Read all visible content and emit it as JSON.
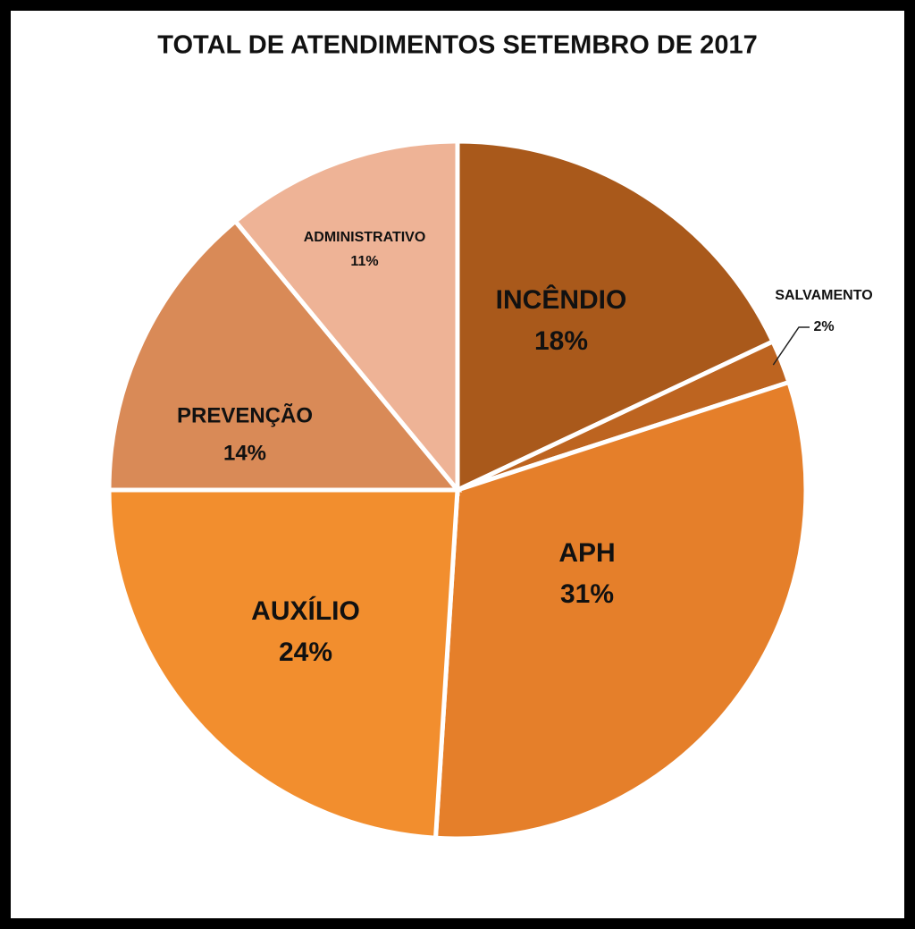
{
  "chart_data": {
    "type": "pie",
    "title": "TOTAL DE ATENDIMENTOS SETEMBRO DE 2017",
    "categories": [
      "INCÊNDIO",
      "SALVAMENTO",
      "APH",
      "AUXÍLIO",
      "PREVENÇÃO",
      "ADMINISTRATIVO"
    ],
    "values": [
      18,
      2,
      31,
      24,
      14,
      11
    ],
    "value_labels": [
      "18%",
      "2%",
      "31%",
      "24%",
      "14%",
      "11%"
    ],
    "colors": [
      "#a9591b",
      "#bd6420",
      "#e57f2a",
      "#f28e2e",
      "#d98a57",
      "#eeb396"
    ]
  }
}
